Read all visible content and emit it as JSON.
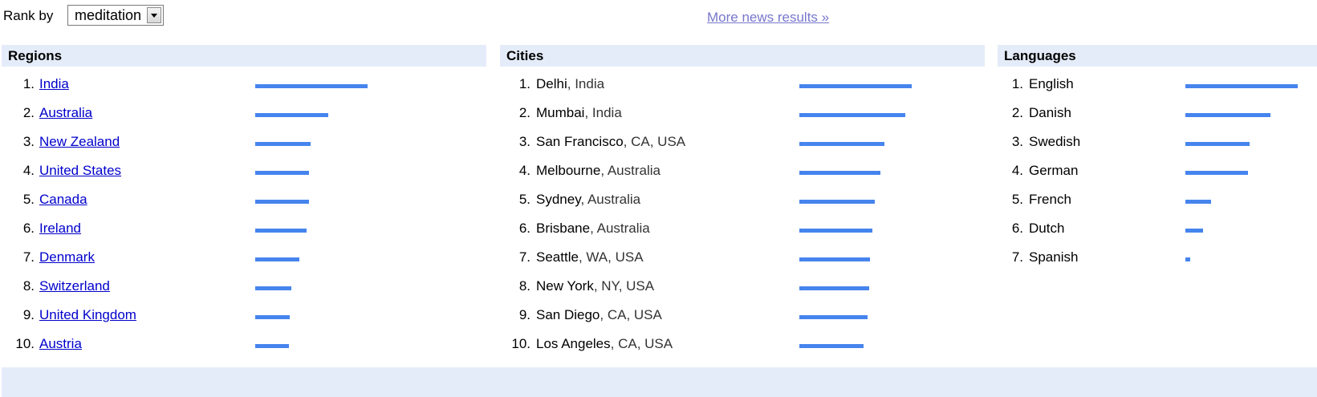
{
  "rank_by": {
    "label": "Rank by",
    "selected": "meditation"
  },
  "more_news_link": "More news results »",
  "colors": {
    "bar": "#4684ee",
    "panel_header_bg": "#e5ecf9",
    "link": "#0000cc",
    "visited_link": "#7777cc"
  },
  "regions": {
    "title": "Regions",
    "items": [
      {
        "num": "1.",
        "name": "India",
        "value": 100
      },
      {
        "num": "2.",
        "name": "Australia",
        "value": 65
      },
      {
        "num": "3.",
        "name": "New Zealand",
        "value": 49
      },
      {
        "num": "4.",
        "name": "United States",
        "value": 48
      },
      {
        "num": "5.",
        "name": "Canada",
        "value": 48
      },
      {
        "num": "6.",
        "name": "Ireland",
        "value": 46
      },
      {
        "num": "7.",
        "name": "Denmark",
        "value": 39
      },
      {
        "num": "8.",
        "name": "Switzerland",
        "value": 32
      },
      {
        "num": "9.",
        "name": "United Kingdom",
        "value": 31
      },
      {
        "num": "10.",
        "name": "Austria",
        "value": 30
      }
    ]
  },
  "cities": {
    "title": "Cities",
    "items": [
      {
        "num": "1.",
        "name": "Delhi",
        "detail": ", India",
        "value": 100
      },
      {
        "num": "2.",
        "name": "Mumbai",
        "detail": ", India",
        "value": 94
      },
      {
        "num": "3.",
        "name": "San Francisco",
        "detail": ", CA, USA",
        "value": 76
      },
      {
        "num": "4.",
        "name": "Melbourne",
        "detail": ", Australia",
        "value": 72
      },
      {
        "num": "5.",
        "name": "Sydney",
        "detail": ", Australia",
        "value": 67
      },
      {
        "num": "6.",
        "name": "Brisbane",
        "detail": ", Australia",
        "value": 65
      },
      {
        "num": "7.",
        "name": "Seattle",
        "detail": ", WA, USA",
        "value": 63
      },
      {
        "num": "8.",
        "name": "New York",
        "detail": ", NY, USA",
        "value": 62
      },
      {
        "num": "9.",
        "name": "San Diego",
        "detail": ", CA, USA",
        "value": 61
      },
      {
        "num": "10.",
        "name": "Los Angeles",
        "detail": ", CA, USA",
        "value": 57
      }
    ]
  },
  "languages": {
    "title": "Languages",
    "items": [
      {
        "num": "1.",
        "name": "English",
        "value": 100
      },
      {
        "num": "2.",
        "name": "Danish",
        "value": 76
      },
      {
        "num": "3.",
        "name": "Swedish",
        "value": 57
      },
      {
        "num": "4.",
        "name": "German",
        "value": 56
      },
      {
        "num": "5.",
        "name": "French",
        "value": 23
      },
      {
        "num": "6.",
        "name": "Dutch",
        "value": 16
      },
      {
        "num": "7.",
        "name": "Spanish",
        "value": 4
      }
    ]
  }
}
